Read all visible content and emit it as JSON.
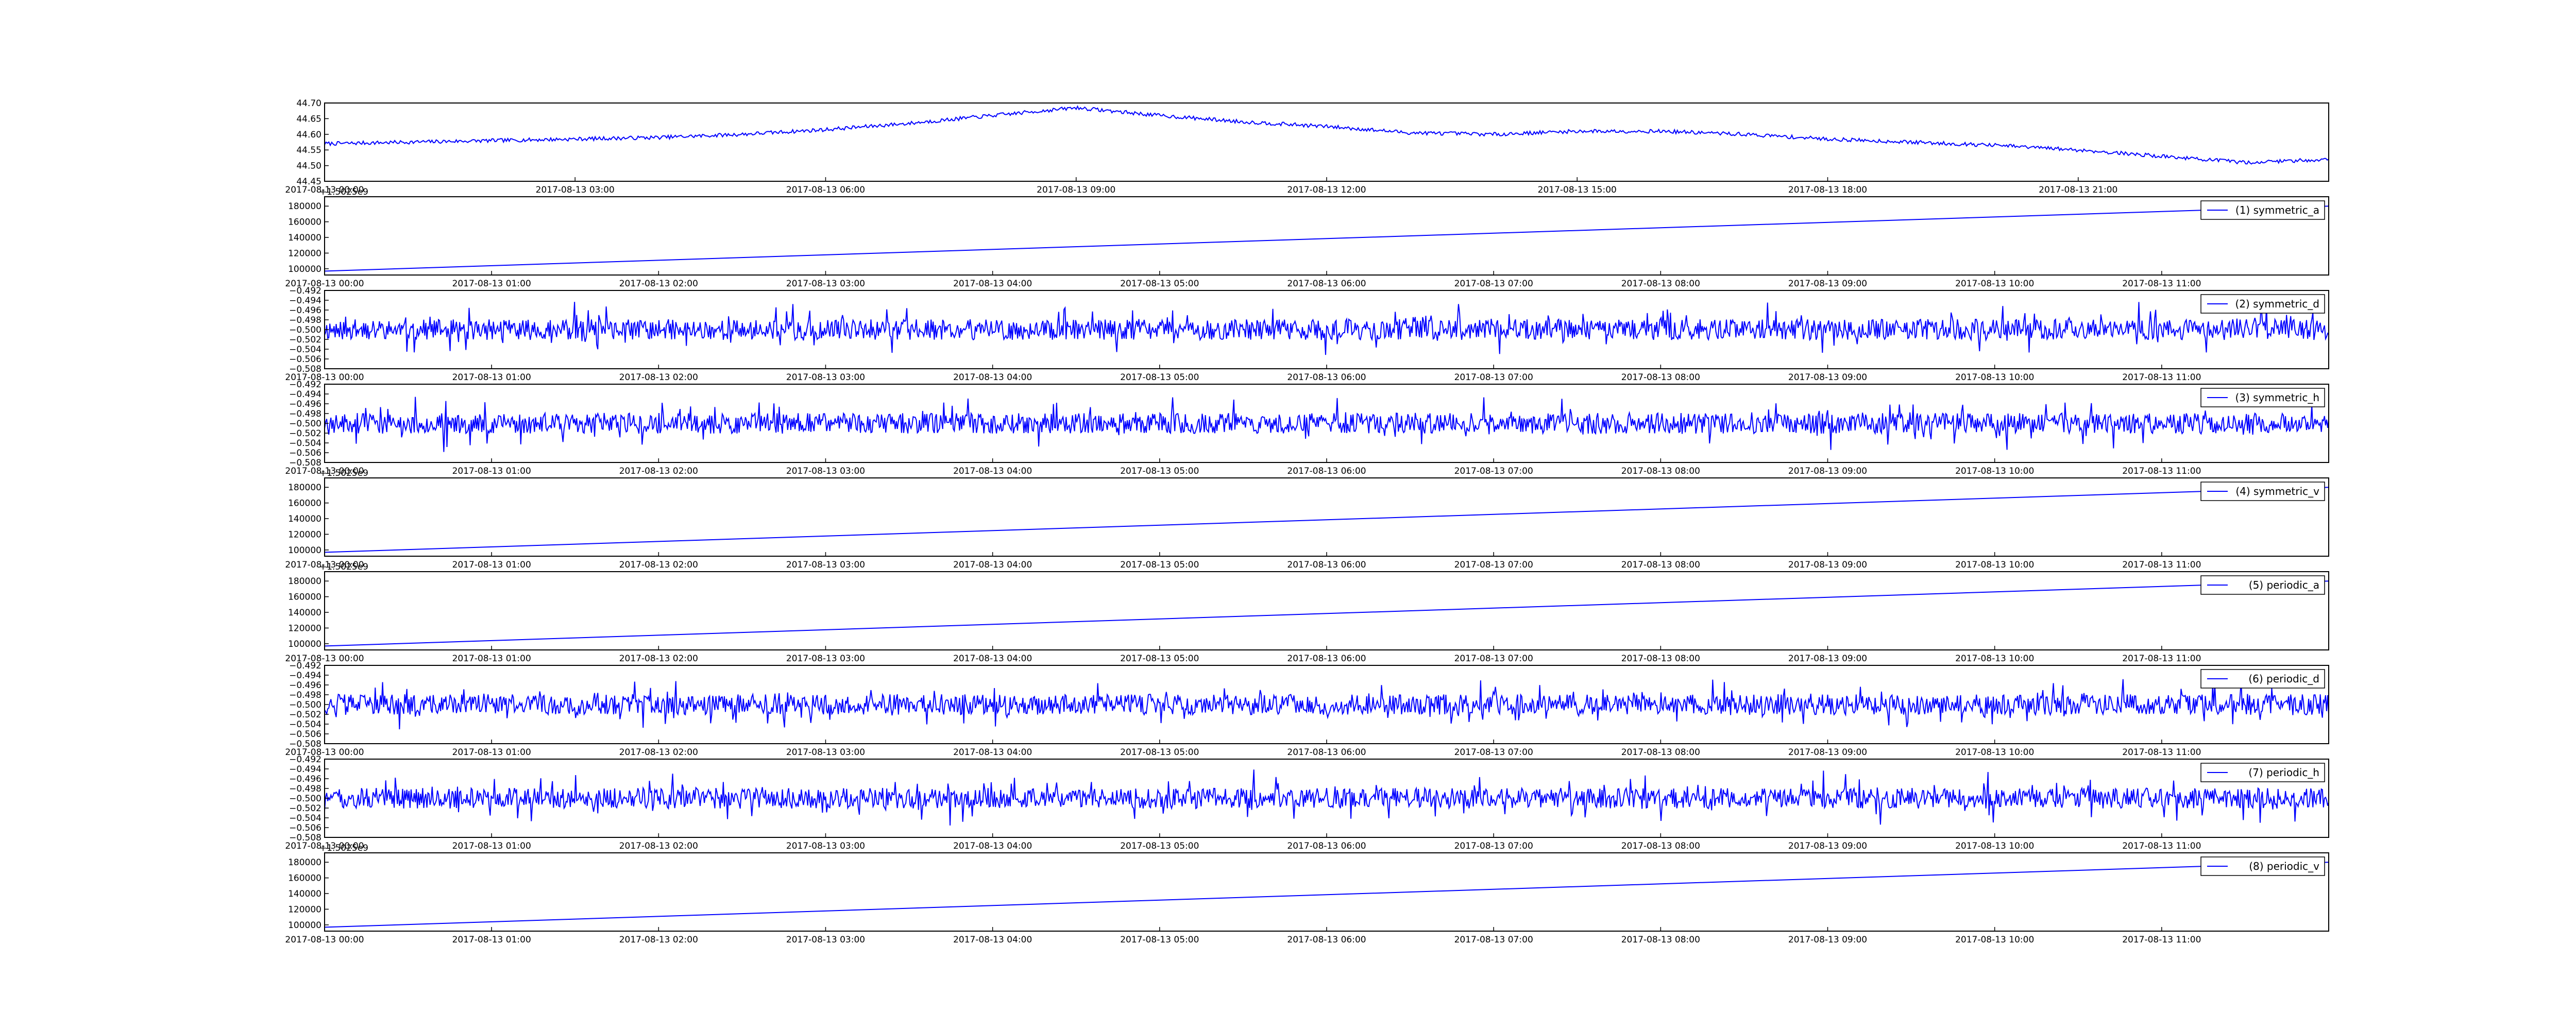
{
  "chart_data": [
    {
      "type": "line",
      "title": "",
      "xlabel": "",
      "ylabel": "",
      "x_ticks": [
        "2017-08-13 00:00",
        "2017-08-13 03:00",
        "2017-08-13 06:00",
        "2017-08-13 09:00",
        "2017-08-13 12:00",
        "2017-08-13 15:00",
        "2017-08-13 18:00",
        "2017-08-13 21:00"
      ],
      "x_range_hours": [
        0,
        24
      ],
      "y_ticks": [
        "44.45",
        "44.50",
        "44.55",
        "44.60",
        "44.65",
        "44.70"
      ],
      "ylim": [
        44.45,
        44.7
      ],
      "grid": false,
      "legend": "",
      "series": [
        {
          "x_hours": [
            0,
            1,
            2,
            3,
            4,
            5,
            6,
            7,
            8,
            9,
            10,
            11,
            12,
            13,
            14,
            15,
            16,
            17,
            18,
            19,
            20,
            21,
            22,
            23,
            24
          ],
          "values": [
            44.57,
            44.575,
            44.58,
            44.585,
            44.59,
            44.6,
            44.615,
            44.635,
            44.66,
            44.685,
            44.66,
            44.64,
            44.625,
            44.605,
            44.6,
            44.61,
            44.61,
            44.6,
            44.585,
            44.575,
            44.565,
            44.55,
            44.53,
            44.51,
            44.52
          ]
        }
      ]
    },
    {
      "type": "line",
      "x_ticks": [
        "2017-08-13 00:00",
        "2017-08-13 01:00",
        "2017-08-13 02:00",
        "2017-08-13 03:00",
        "2017-08-13 04:00",
        "2017-08-13 05:00",
        "2017-08-13 06:00",
        "2017-08-13 07:00",
        "2017-08-13 08:00",
        "2017-08-13 09:00",
        "2017-08-13 10:00",
        "2017-08-13 11:00"
      ],
      "x_range_hours": [
        0,
        12
      ],
      "y_offset_label": "+1.5025e9",
      "y_ticks": [
        "100000",
        "120000",
        "140000",
        "160000",
        "180000"
      ],
      "ylim": [
        92000,
        192000
      ],
      "legend": "top-right",
      "series": [
        {
          "name": "(1) symmetric_a",
          "x_hours": [
            0,
            12
          ],
          "values": [
            97000,
            180000
          ]
        }
      ]
    },
    {
      "type": "line",
      "x_ticks": [
        "2017-08-13 00:00",
        "2017-08-13 01:00",
        "2017-08-13 02:00",
        "2017-08-13 03:00",
        "2017-08-13 04:00",
        "2017-08-13 05:00",
        "2017-08-13 06:00",
        "2017-08-13 07:00",
        "2017-08-13 08:00",
        "2017-08-13 09:00",
        "2017-08-13 10:00",
        "2017-08-13 11:00"
      ],
      "x_range_hours": [
        0,
        12
      ],
      "y_ticks": [
        "−0.492",
        "−0.494",
        "−0.496",
        "−0.498",
        "−0.500",
        "−0.502",
        "−0.504",
        "−0.506",
        "−0.508"
      ],
      "ylim": [
        -0.508,
        -0.492
      ],
      "legend": "top-right",
      "series": [
        {
          "name": "(2) symmetric_d",
          "baseline": -0.5,
          "amplitude": 0.006,
          "seed": 11
        }
      ]
    },
    {
      "type": "line",
      "x_ticks": [
        "2017-08-13 00:00",
        "2017-08-13 01:00",
        "2017-08-13 02:00",
        "2017-08-13 03:00",
        "2017-08-13 04:00",
        "2017-08-13 05:00",
        "2017-08-13 06:00",
        "2017-08-13 07:00",
        "2017-08-13 08:00",
        "2017-08-13 09:00",
        "2017-08-13 10:00",
        "2017-08-13 11:00"
      ],
      "x_range_hours": [
        0,
        12
      ],
      "y_ticks": [
        "−0.492",
        "−0.494",
        "−0.496",
        "−0.498",
        "−0.500",
        "−0.502",
        "−0.504",
        "−0.506",
        "−0.508"
      ],
      "ylim": [
        -0.508,
        -0.492
      ],
      "legend": "top-right",
      "series": [
        {
          "name": "(3) symmetric_h",
          "baseline": -0.5,
          "amplitude": 0.006,
          "seed": 23
        }
      ]
    },
    {
      "type": "line",
      "x_ticks": [
        "2017-08-13 00:00",
        "2017-08-13 01:00",
        "2017-08-13 02:00",
        "2017-08-13 03:00",
        "2017-08-13 04:00",
        "2017-08-13 05:00",
        "2017-08-13 06:00",
        "2017-08-13 07:00",
        "2017-08-13 08:00",
        "2017-08-13 09:00",
        "2017-08-13 10:00",
        "2017-08-13 11:00"
      ],
      "x_range_hours": [
        0,
        12
      ],
      "y_offset_label": "+1.5025e9",
      "y_ticks": [
        "100000",
        "120000",
        "140000",
        "160000",
        "180000"
      ],
      "ylim": [
        92000,
        192000
      ],
      "legend": "top-right",
      "series": [
        {
          "name": "(4) symmetric_v",
          "x_hours": [
            0,
            12
          ],
          "values": [
            97000,
            180000
          ]
        }
      ]
    },
    {
      "type": "line",
      "x_ticks": [
        "2017-08-13 00:00",
        "2017-08-13 01:00",
        "2017-08-13 02:00",
        "2017-08-13 03:00",
        "2017-08-13 04:00",
        "2017-08-13 05:00",
        "2017-08-13 06:00",
        "2017-08-13 07:00",
        "2017-08-13 08:00",
        "2017-08-13 09:00",
        "2017-08-13 10:00",
        "2017-08-13 11:00"
      ],
      "x_range_hours": [
        0,
        12
      ],
      "y_offset_label": "+1.5025e9",
      "y_ticks": [
        "100000",
        "120000",
        "140000",
        "160000",
        "180000"
      ],
      "ylim": [
        92000,
        192000
      ],
      "legend": "top-right",
      "series": [
        {
          "name": "(5) periodic_a",
          "x_hours": [
            0,
            12
          ],
          "values": [
            97000,
            180000
          ]
        }
      ]
    },
    {
      "type": "line",
      "x_ticks": [
        "2017-08-13 00:00",
        "2017-08-13 01:00",
        "2017-08-13 02:00",
        "2017-08-13 03:00",
        "2017-08-13 04:00",
        "2017-08-13 05:00",
        "2017-08-13 06:00",
        "2017-08-13 07:00",
        "2017-08-13 08:00",
        "2017-08-13 09:00",
        "2017-08-13 10:00",
        "2017-08-13 11:00"
      ],
      "x_range_hours": [
        0,
        12
      ],
      "y_ticks": [
        "−0.492",
        "−0.494",
        "−0.496",
        "−0.498",
        "−0.500",
        "−0.502",
        "−0.504",
        "−0.506",
        "−0.508"
      ],
      "ylim": [
        -0.508,
        -0.492
      ],
      "legend": "top-right",
      "series": [
        {
          "name": "(6) periodic_d",
          "baseline": -0.5,
          "amplitude": 0.006,
          "seed": 37
        }
      ]
    },
    {
      "type": "line",
      "x_ticks": [
        "2017-08-13 00:00",
        "2017-08-13 01:00",
        "2017-08-13 02:00",
        "2017-08-13 03:00",
        "2017-08-13 04:00",
        "2017-08-13 05:00",
        "2017-08-13 06:00",
        "2017-08-13 07:00",
        "2017-08-13 08:00",
        "2017-08-13 09:00",
        "2017-08-13 10:00",
        "2017-08-13 11:00"
      ],
      "x_range_hours": [
        0,
        12
      ],
      "y_ticks": [
        "−0.492",
        "−0.494",
        "−0.496",
        "−0.498",
        "−0.500",
        "−0.502",
        "−0.504",
        "−0.506",
        "−0.508"
      ],
      "ylim": [
        -0.508,
        -0.492
      ],
      "legend": "top-right",
      "series": [
        {
          "name": "(7) periodic_h",
          "baseline": -0.5,
          "amplitude": 0.006,
          "seed": 51
        }
      ]
    },
    {
      "type": "line",
      "x_ticks": [
        "2017-08-13 00:00",
        "2017-08-13 01:00",
        "2017-08-13 02:00",
        "2017-08-13 03:00",
        "2017-08-13 04:00",
        "2017-08-13 05:00",
        "2017-08-13 06:00",
        "2017-08-13 07:00",
        "2017-08-13 08:00",
        "2017-08-13 09:00",
        "2017-08-13 10:00",
        "2017-08-13 11:00"
      ],
      "x_range_hours": [
        0,
        12
      ],
      "y_offset_label": "+1.5025e9",
      "y_ticks": [
        "100000",
        "120000",
        "140000",
        "160000",
        "180000"
      ],
      "ylim": [
        92000,
        192000
      ],
      "legend": "top-right",
      "series": [
        {
          "name": "(8) periodic_v",
          "x_hours": [
            0,
            12
          ],
          "values": [
            97000,
            180000
          ]
        }
      ]
    }
  ],
  "colors": {
    "line": "#0000ff",
    "axes": "#000000",
    "background": "#ffffff"
  }
}
